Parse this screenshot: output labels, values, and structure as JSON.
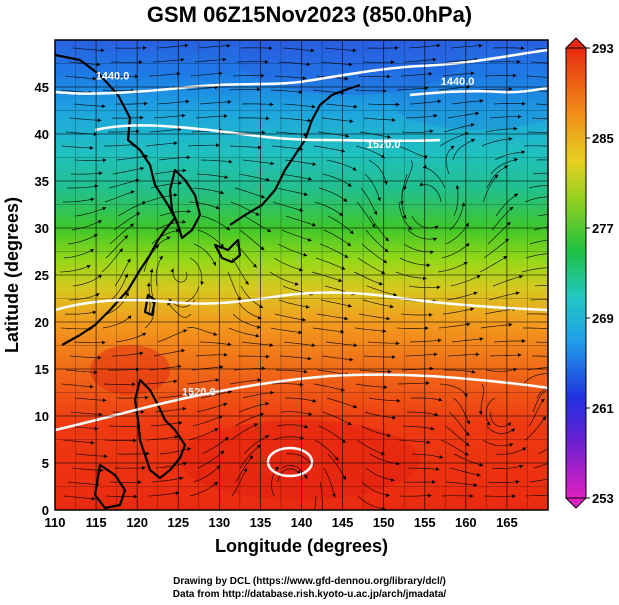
{
  "title": "GSM 06Z15Nov2023 (850.0hPa)",
  "x_axis": {
    "label": "Longitude (degrees)",
    "range": [
      110,
      170
    ],
    "ticks": [
      110,
      115,
      120,
      125,
      130,
      135,
      140,
      145,
      150,
      155,
      160,
      165
    ]
  },
  "y_axis": {
    "label": "Latitude  (degrees)",
    "range": [
      0,
      50
    ],
    "ticks": [
      0,
      5,
      10,
      15,
      20,
      25,
      30,
      35,
      40,
      45
    ]
  },
  "colorbar": {
    "min": 253,
    "max": 293,
    "labels": [
      293,
      285,
      277,
      269,
      261,
      253
    ]
  },
  "contours": [
    {
      "label": "1440.0",
      "lon": 117,
      "lat": 45.8
    },
    {
      "label": "1440.0",
      "lon": 159,
      "lat": 45.2
    },
    {
      "label": "1520.0",
      "lon": 150,
      "lat": 38.5
    },
    {
      "label": "1520.0",
      "lon": 127.5,
      "lat": 12.2
    }
  ],
  "credits": {
    "line1": "Drawing by DCL (https://www.gfd-dennou.org/library/dcl/)",
    "line2": "Data from http://database.rish.kyoto-u.ac.jp/arch/jmadata/"
  }
}
